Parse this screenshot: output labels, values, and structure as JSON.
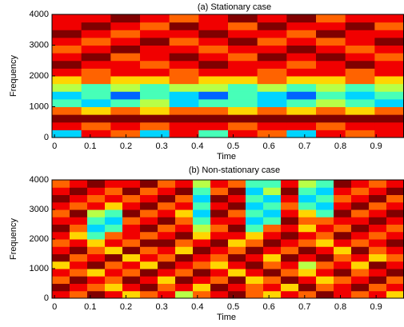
{
  "chart_data": [
    {
      "type": "heatmap",
      "title": "(a) Stationary case",
      "xlabel": "Time",
      "ylabel": "Frequency",
      "colormap": "jet",
      "zlim": [
        0,
        9
      ],
      "xlim": [
        -0.007,
        0.978
      ],
      "ylim": [
        0,
        4000
      ],
      "xticks": [
        0,
        0.1,
        0.2,
        0.3,
        0.4,
        0.5,
        0.6,
        0.7,
        0.8,
        0.9
      ],
      "yticks": [
        0,
        1000,
        2000,
        3000,
        4000
      ],
      "z": [
        [
          3,
          8,
          7,
          3,
          8,
          4,
          8,
          7,
          3,
          8,
          7,
          8
        ],
        [
          8,
          7,
          8,
          7,
          8,
          8,
          7,
          8,
          8,
          7,
          8,
          8
        ],
        [
          9,
          9,
          9,
          9,
          9,
          9,
          9,
          9,
          9,
          9,
          9,
          9
        ],
        [
          7,
          6,
          7,
          6,
          7,
          7,
          6,
          7,
          6,
          7,
          6,
          7
        ],
        [
          4,
          3,
          4,
          5,
          3,
          4,
          4,
          3,
          4,
          5,
          4,
          3
        ],
        [
          3,
          4,
          2,
          4,
          3,
          2,
          4,
          3,
          2,
          4,
          3,
          4
        ],
        [
          5,
          4,
          5,
          4,
          5,
          5,
          4,
          5,
          4,
          5,
          4,
          5
        ],
        [
          6,
          7,
          6,
          6,
          7,
          6,
          6,
          7,
          6,
          6,
          7,
          6
        ],
        [
          8,
          7,
          8,
          8,
          7,
          8,
          8,
          7,
          8,
          8,
          7,
          8
        ],
        [
          9,
          8,
          8,
          7,
          8,
          9,
          8,
          8,
          7,
          8,
          9,
          8
        ],
        [
          8,
          9,
          7,
          8,
          9,
          8,
          7,
          9,
          8,
          9,
          8,
          7
        ],
        [
          7,
          8,
          9,
          8,
          8,
          7,
          8,
          8,
          9,
          8,
          7,
          8
        ],
        [
          8,
          7,
          8,
          9,
          7,
          8,
          9,
          7,
          8,
          7,
          8,
          9
        ],
        [
          9,
          8,
          7,
          8,
          8,
          9,
          8,
          8,
          7,
          9,
          8,
          8
        ],
        [
          8,
          9,
          8,
          7,
          9,
          8,
          7,
          9,
          8,
          8,
          9,
          7
        ],
        [
          8,
          8,
          9,
          8,
          7,
          8,
          9,
          8,
          9,
          7,
          8,
          8
        ]
      ]
    },
    {
      "type": "heatmap",
      "title": "(b) Non-stationary case",
      "xlabel": "Time",
      "ylabel": "Frequency",
      "colormap": "jet",
      "zlim": [
        0,
        9
      ],
      "xlim": [
        -0.007,
        0.978
      ],
      "ylim": [
        0,
        4000
      ],
      "xticks": [
        0,
        0.1,
        0.2,
        0.3,
        0.4,
        0.5,
        0.6,
        0.7,
        0.8,
        0.9
      ],
      "yticks": [
        0,
        1000,
        2000,
        3000,
        4000
      ],
      "z": [
        [
          8,
          7,
          9,
          8,
          6,
          7,
          8,
          5,
          7,
          8,
          9,
          7,
          6,
          8,
          7,
          9,
          8,
          7,
          8,
          6
        ],
        [
          9,
          8,
          7,
          6,
          8,
          9,
          7,
          8,
          6,
          9,
          8,
          7,
          8,
          6,
          9,
          7,
          8,
          9,
          7,
          8
        ],
        [
          7,
          9,
          8,
          7,
          9,
          8,
          6,
          9,
          8,
          7,
          9,
          6,
          7,
          9,
          8,
          6,
          7,
          8,
          9,
          7
        ],
        [
          8,
          7,
          6,
          8,
          7,
          9,
          8,
          7,
          9,
          8,
          6,
          8,
          9,
          7,
          6,
          8,
          9,
          7,
          8,
          9
        ],
        [
          6,
          8,
          9,
          7,
          8,
          6,
          9,
          8,
          7,
          6,
          8,
          9,
          7,
          8,
          5,
          7,
          8,
          6,
          9,
          8
        ],
        [
          9,
          7,
          8,
          9,
          6,
          8,
          7,
          9,
          8,
          7,
          9,
          8,
          6,
          9,
          8,
          9,
          7,
          8,
          6,
          7
        ],
        [
          8,
          9,
          7,
          6,
          9,
          7,
          8,
          6,
          9,
          8,
          7,
          9,
          8,
          7,
          9,
          8,
          6,
          9,
          7,
          8
        ],
        [
          7,
          8,
          6,
          8,
          7,
          9,
          9,
          7,
          8,
          9,
          6,
          7,
          9,
          8,
          7,
          6,
          8,
          7,
          8,
          9
        ],
        [
          8,
          6,
          4,
          7,
          8,
          7,
          8,
          9,
          6,
          8,
          8,
          6,
          8,
          9,
          8,
          7,
          9,
          8,
          7,
          8
        ],
        [
          9,
          7,
          3,
          4,
          8,
          9,
          7,
          8,
          5,
          7,
          9,
          4,
          7,
          8,
          6,
          8,
          7,
          9,
          8,
          7
        ],
        [
          8,
          8,
          4,
          3,
          7,
          8,
          9,
          7,
          4,
          8,
          8,
          3,
          4,
          9,
          7,
          7,
          8,
          8,
          9,
          8
        ],
        [
          7,
          9,
          5,
          4,
          9,
          7,
          8,
          6,
          3,
          9,
          7,
          4,
          3,
          8,
          6,
          4,
          9,
          7,
          8,
          9
        ],
        [
          8,
          7,
          8,
          6,
          8,
          9,
          7,
          8,
          4,
          8,
          9,
          3,
          4,
          7,
          4,
          3,
          8,
          9,
          7,
          8
        ],
        [
          9,
          8,
          7,
          8,
          7,
          8,
          9,
          7,
          3,
          9,
          8,
          4,
          3,
          8,
          3,
          4,
          7,
          8,
          9,
          7
        ],
        [
          8,
          9,
          8,
          7,
          9,
          7,
          8,
          9,
          4,
          7,
          9,
          3,
          5,
          9,
          4,
          3,
          8,
          7,
          8,
          9
        ],
        [
          7,
          8,
          9,
          8,
          8,
          9,
          7,
          8,
          5,
          8,
          7,
          4,
          4,
          8,
          5,
          4,
          9,
          8,
          7,
          8
        ]
      ]
    }
  ]
}
